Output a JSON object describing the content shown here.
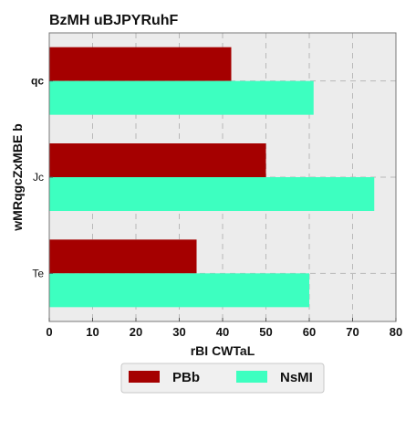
{
  "chart_data": {
    "type": "bar",
    "orientation": "horizontal",
    "title": "BzMH uBJPYRuhF",
    "xlabel": "rBI CWTaL",
    "ylabel": "wMRqgcZxMBE b",
    "categories": [
      "qc",
      "Jc",
      "Te"
    ],
    "category_bold": [
      true,
      false,
      false
    ],
    "xlim": [
      0,
      80
    ],
    "xticks": [
      0,
      10,
      20,
      30,
      40,
      50,
      60,
      70,
      80
    ],
    "grid": true,
    "legend_position": "bottom-center",
    "series": [
      {
        "name": "PBb",
        "color": "#a50000",
        "values": [
          42,
          50,
          34
        ]
      },
      {
        "name": "NsMI",
        "color": "#3dffc0",
        "values": [
          61,
          75,
          60
        ]
      }
    ]
  }
}
